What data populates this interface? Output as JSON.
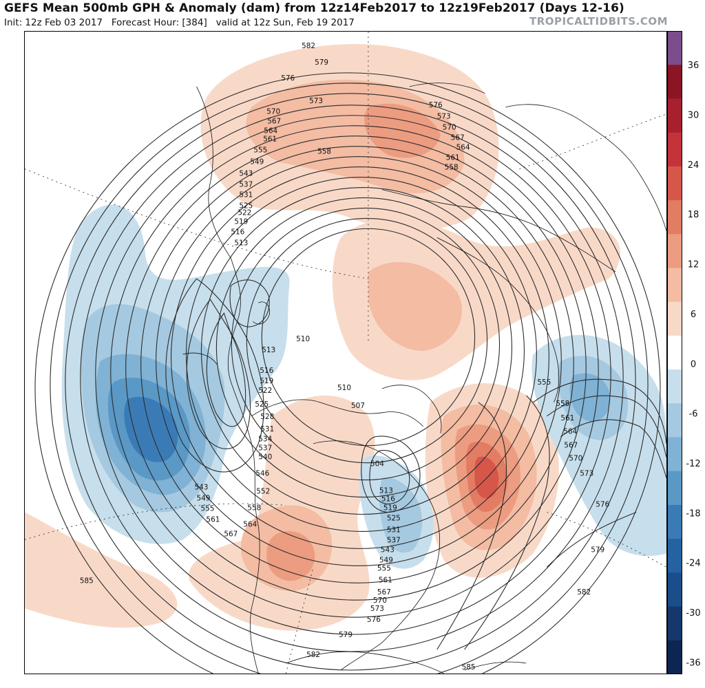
{
  "header": {
    "title": "GEFS Mean 500mb GPH & Anomaly (dam) from 12z14Feb2017 to 12z19Feb2017 (Days 12-16)",
    "subtitle": "Init: 12z Feb 03 2017   Forecast Hour: [384]   valid at 12z Sun, Feb 19 2017",
    "brand": "TROPICALTIDBITS.COM"
  },
  "colorbar": {
    "ticks": [
      "36",
      "30",
      "24",
      "18",
      "12",
      "6",
      "0",
      "-6",
      "-12",
      "-18",
      "-24",
      "-30",
      "-36"
    ],
    "colors": [
      "#7b4d8c",
      "#8c1525",
      "#a81f2e",
      "#c4333a",
      "#d6574a",
      "#e27c63",
      "#ec9c80",
      "#f3bca3",
      "#f8d9c8",
      "#ffffff",
      "#c7dfec",
      "#a5c9e0",
      "#7fb2d4",
      "#5a98c6",
      "#3a7bb6",
      "#2562a2",
      "#1a4d8a",
      "#14386e",
      "#0d2552"
    ]
  },
  "contour_labels": [
    {
      "text": "582",
      "label_id": "582-n"
    },
    {
      "text": "579",
      "label_id": "579-n"
    },
    {
      "text": "576",
      "label_id": "576-n"
    },
    {
      "text": "573",
      "label_id": "573-n"
    },
    {
      "text": "570",
      "label_id": "570-n"
    },
    {
      "text": "567",
      "label_id": "567-n"
    },
    {
      "text": "564",
      "label_id": "564-n"
    },
    {
      "text": "561",
      "label_id": "561-n"
    },
    {
      "text": "555",
      "label_id": "555-n"
    },
    {
      "text": "549",
      "label_id": "549-n"
    },
    {
      "text": "543",
      "label_id": "543-n"
    },
    {
      "text": "537",
      "label_id": "537-n"
    },
    {
      "text": "531",
      "label_id": "531-n"
    },
    {
      "text": "525",
      "label_id": "525-n"
    },
    {
      "text": "522",
      "label_id": "522-n"
    },
    {
      "text": "519",
      "label_id": "519-n"
    },
    {
      "text": "516",
      "label_id": "516-n"
    },
    {
      "text": "513",
      "label_id": "513-n"
    },
    {
      "text": "558",
      "label_id": "558-n"
    },
    {
      "text": "576",
      "label_id": "576-e"
    },
    {
      "text": "573",
      "label_id": "573-e"
    },
    {
      "text": "570",
      "label_id": "570-e"
    },
    {
      "text": "567",
      "label_id": "567-e"
    },
    {
      "text": "564",
      "label_id": "564-e"
    },
    {
      "text": "561",
      "label_id": "561-e"
    },
    {
      "text": "558",
      "label_id": "558-e"
    },
    {
      "text": "510",
      "label_id": "510-c"
    },
    {
      "text": "513",
      "label_id": "513-c"
    },
    {
      "text": "516",
      "label_id": "516-c"
    },
    {
      "text": "519",
      "label_id": "519-c"
    },
    {
      "text": "522",
      "label_id": "522-c"
    },
    {
      "text": "525",
      "label_id": "525-c"
    },
    {
      "text": "528",
      "label_id": "528-c"
    },
    {
      "text": "531",
      "label_id": "531-c"
    },
    {
      "text": "534",
      "label_id": "534-c"
    },
    {
      "text": "537",
      "label_id": "537-c"
    },
    {
      "text": "540",
      "label_id": "540-c"
    },
    {
      "text": "546",
      "label_id": "546-c"
    },
    {
      "text": "552",
      "label_id": "552-c"
    },
    {
      "text": "558",
      "label_id": "558-c"
    },
    {
      "text": "564",
      "label_id": "564-c"
    },
    {
      "text": "567",
      "label_id": "567-c"
    },
    {
      "text": "543",
      "label_id": "543-w"
    },
    {
      "text": "549",
      "label_id": "549-w"
    },
    {
      "text": "555",
      "label_id": "555-w"
    },
    {
      "text": "561",
      "label_id": "561-w"
    },
    {
      "text": "585",
      "label_id": "585-w"
    },
    {
      "text": "510",
      "label_id": "510-g"
    },
    {
      "text": "507",
      "label_id": "507-g"
    },
    {
      "text": "504",
      "label_id": "504-g"
    },
    {
      "text": "513",
      "label_id": "513-g"
    },
    {
      "text": "516",
      "label_id": "516-g"
    },
    {
      "text": "519",
      "label_id": "519-g"
    },
    {
      "text": "525",
      "label_id": "525-g"
    },
    {
      "text": "531",
      "label_id": "531-g"
    },
    {
      "text": "537",
      "label_id": "537-g"
    },
    {
      "text": "543",
      "label_id": "543-g"
    },
    {
      "text": "549",
      "label_id": "549-g"
    },
    {
      "text": "555",
      "label_id": "555-g"
    },
    {
      "text": "561",
      "label_id": "561-g"
    },
    {
      "text": "567",
      "label_id": "567-g"
    },
    {
      "text": "570",
      "label_id": "570-g"
    },
    {
      "text": "573",
      "label_id": "573-g"
    },
    {
      "text": "576",
      "label_id": "576-g"
    },
    {
      "text": "579",
      "label_id": "579-s"
    },
    {
      "text": "582",
      "label_id": "582-s"
    },
    {
      "text": "585",
      "label_id": "585-s"
    },
    {
      "text": "555",
      "label_id": "555-a"
    },
    {
      "text": "558",
      "label_id": "558-a"
    },
    {
      "text": "561",
      "label_id": "561-a"
    },
    {
      "text": "564",
      "label_id": "564-a"
    },
    {
      "text": "567",
      "label_id": "567-a"
    },
    {
      "text": "570",
      "label_id": "570-a"
    },
    {
      "text": "573",
      "label_id": "573-a"
    },
    {
      "text": "576",
      "label_id": "576-a"
    },
    {
      "text": "579",
      "label_id": "579-a"
    },
    {
      "text": "582",
      "label_id": "582-a"
    }
  ]
}
